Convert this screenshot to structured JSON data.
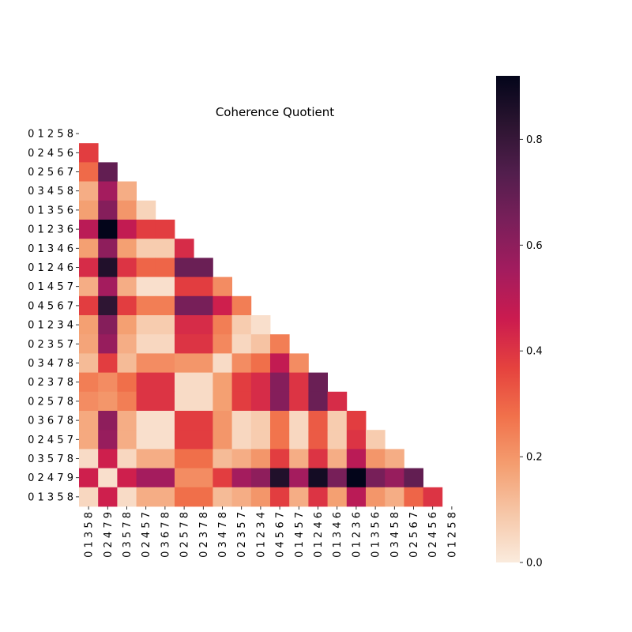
{
  "chart_data": {
    "type": "heatmap",
    "title": "Coherence Quotient",
    "row_labels": [
      "0 1 2 5 8",
      "0 2 4 5 6",
      "0 2 5 6 7",
      "0 3 4 5 8",
      "0 1 3 5 6",
      "0 1 2 3 6",
      "0 1 3 4 6",
      "0 1 2 4 6",
      "0 1 4 5 7",
      "0 4 5 6 7",
      "0 1 2 3 4",
      "0 2 3 5 7",
      "0 3 4 7 8",
      "0 2 3 7 8",
      "0 2 5 7 8",
      "0 3 6 7 8",
      "0 2 4 5 7",
      "0 3 5 7 8",
      "0 2 4 7 9",
      "0 1 3 5 8"
    ],
    "col_labels": [
      "0 1 3 5 8",
      "0 2 4 7 9",
      "0 3 5 7 8",
      "0 2 4 5 7",
      "0 3 6 7 8",
      "0 2 5 7 8",
      "0 2 3 7 8",
      "0 3 4 7 8",
      "0 2 3 5 7",
      "0 1 2 3 4",
      "0 4 5 6 7",
      "0 1 4 5 7",
      "0 1 2 4 6",
      "0 1 3 4 6",
      "0 1 2 3 6",
      "0 1 3 5 6",
      "0 3 4 5 8",
      "0 2 5 6 7",
      "0 2 4 5 6",
      "0 1 2 5 8"
    ],
    "mask": "upper-triangle",
    "colormap": "rocket_r",
    "colorbar": {
      "min": 0.0,
      "max": 0.92,
      "ticks": [
        0.0,
        0.2,
        0.4,
        0.6,
        0.8
      ],
      "tick_labels": [
        "0.0",
        "0.2",
        "0.4",
        "0.6",
        "0.8"
      ]
    },
    "values": [
      [],
      [
        0.38
      ],
      [
        0.29,
        0.7
      ],
      [
        0.15,
        0.55,
        0.15
      ],
      [
        0.18,
        0.62,
        0.2,
        0.06
      ],
      [
        0.5,
        0.92,
        0.48,
        0.38,
        0.38
      ],
      [
        0.18,
        0.6,
        0.18,
        0.08,
        0.08,
        0.42
      ],
      [
        0.42,
        0.85,
        0.4,
        0.3,
        0.3,
        0.68,
        0.68
      ],
      [
        0.15,
        0.55,
        0.15,
        0.03,
        0.03,
        0.38,
        0.38,
        0.22
      ],
      [
        0.38,
        0.82,
        0.38,
        0.25,
        0.25,
        0.65,
        0.65,
        0.45,
        0.25
      ],
      [
        0.18,
        0.62,
        0.18,
        0.08,
        0.08,
        0.42,
        0.42,
        0.25,
        0.08,
        0.03
      ],
      [
        0.17,
        0.58,
        0.15,
        0.05,
        0.05,
        0.4,
        0.4,
        0.23,
        0.05,
        0.1,
        0.25
      ],
      [
        0.12,
        0.38,
        0.12,
        0.22,
        0.22,
        0.2,
        0.2,
        0.04,
        0.22,
        0.28,
        0.48,
        0.22
      ],
      [
        0.25,
        0.22,
        0.28,
        0.4,
        0.4,
        0.04,
        0.04,
        0.18,
        0.38,
        0.42,
        0.62,
        0.4,
        0.68
      ],
      [
        0.22,
        0.2,
        0.25,
        0.4,
        0.4,
        0.04,
        0.04,
        0.18,
        0.38,
        0.42,
        0.62,
        0.4,
        0.68,
        0.42
      ],
      [
        0.16,
        0.6,
        0.15,
        0.03,
        0.03,
        0.38,
        0.38,
        0.2,
        0.05,
        0.08,
        0.27,
        0.05,
        0.32,
        0.08,
        0.38
      ],
      [
        0.16,
        0.58,
        0.15,
        0.03,
        0.03,
        0.38,
        0.38,
        0.2,
        0.05,
        0.08,
        0.27,
        0.05,
        0.32,
        0.08,
        0.4,
        0.08
      ],
      [
        0.04,
        0.45,
        0.05,
        0.15,
        0.15,
        0.28,
        0.28,
        0.12,
        0.15,
        0.2,
        0.38,
        0.15,
        0.4,
        0.15,
        0.5,
        0.2,
        0.15
      ],
      [
        0.45,
        0.03,
        0.45,
        0.55,
        0.55,
        0.22,
        0.22,
        0.38,
        0.55,
        0.6,
        0.85,
        0.55,
        0.88,
        0.65,
        0.92,
        0.65,
        0.58,
        0.7
      ],
      [
        0.05,
        0.45,
        0.04,
        0.15,
        0.15,
        0.28,
        0.28,
        0.12,
        0.15,
        0.2,
        0.38,
        0.15,
        0.4,
        0.18,
        0.5,
        0.2,
        0.15,
        0.3,
        0.4
      ]
    ]
  }
}
